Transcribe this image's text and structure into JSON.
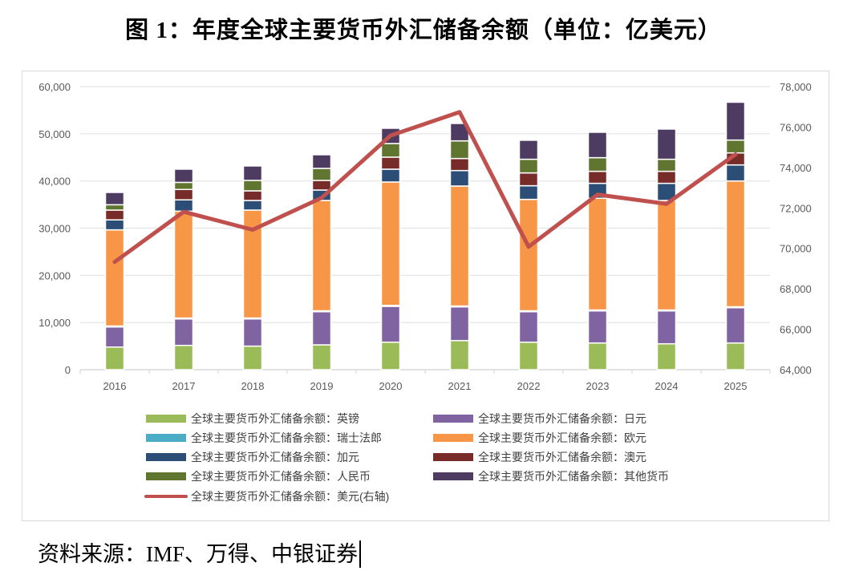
{
  "title": "图 1：年度全球主要货币外汇储备余额（单位：亿美元）",
  "source": "资料来源：IMF、万得、中银证券",
  "chart_data": {
    "type": "bar",
    "stacked": true,
    "categories": [
      "2016",
      "2017",
      "2018",
      "2019",
      "2020",
      "2021",
      "2022",
      "2023",
      "2024",
      "2025"
    ],
    "left_axis": {
      "range": [
        0,
        60000
      ],
      "ticks": [
        "0",
        "10,000",
        "20,000",
        "30,000",
        "40,000",
        "50,000",
        "60,000"
      ]
    },
    "right_axis": {
      "range": [
        64000,
        78000
      ],
      "ticks": [
        "64,000",
        "66,000",
        "68,000",
        "70,000",
        "72,000",
        "74,000",
        "76,000",
        "78,000"
      ]
    },
    "grid": true,
    "legend_position": "bottom",
    "series": [
      {
        "name": "全球主要货币外汇储备余额：英镑",
        "color": "#9BBB59",
        "values": [
          4800,
          5150,
          5000,
          5270,
          5830,
          6170,
          5830,
          5660,
          5490,
          5660
        ]
      },
      {
        "name": "全球主要货币外汇储备余额：日元",
        "color": "#8064A2",
        "values": [
          4260,
          5600,
          5760,
          7020,
          7600,
          7140,
          6460,
          6800,
          6970,
          7480
        ]
      },
      {
        "name": "全球主要货币外汇储备余额：瑞士法郎",
        "color": "#4BACC6",
        "values": [
          200,
          200,
          200,
          200,
          200,
          200,
          200,
          200,
          200,
          200
        ]
      },
      {
        "name": "全球主要货币外汇储备余额：欧元",
        "color": "#F79646",
        "values": [
          20380,
          22650,
          22870,
          23380,
          26150,
          25420,
          23610,
          23670,
          23210,
          26660
        ]
      },
      {
        "name": "全球主要货币外汇储备余额：加元",
        "color": "#2C4D75",
        "values": [
          2120,
          2400,
          2040,
          2210,
          2720,
          3280,
          2890,
          3170,
          3630,
          3400
        ]
      },
      {
        "name": "全球主要货币外汇储备余额：澳元",
        "color": "#772C2A",
        "values": [
          2070,
          2200,
          2040,
          2040,
          2550,
          2550,
          2720,
          2550,
          2550,
          2550
        ]
      },
      {
        "name": "全球主要货币外汇储备余额：人民币",
        "color": "#5F7530",
        "values": [
          1130,
          1500,
          2210,
          2550,
          2890,
          3740,
          2890,
          2890,
          2550,
          2720
        ]
      },
      {
        "name": "全球主要货币外汇储备余额：其他货币",
        "color": "#4D3B62",
        "values": [
          2610,
          2800,
          3060,
          2890,
          3230,
          3690,
          4030,
          5380,
          6400,
          8020
        ]
      }
    ],
    "line_series": {
      "name": "全球主要货币外汇储备余额：美元(右轴)",
      "color": "#C0504D",
      "axis": "right",
      "values": [
        69330,
        71810,
        70920,
        72500,
        75580,
        76740,
        70080,
        72660,
        72200,
        74650
      ]
    }
  }
}
